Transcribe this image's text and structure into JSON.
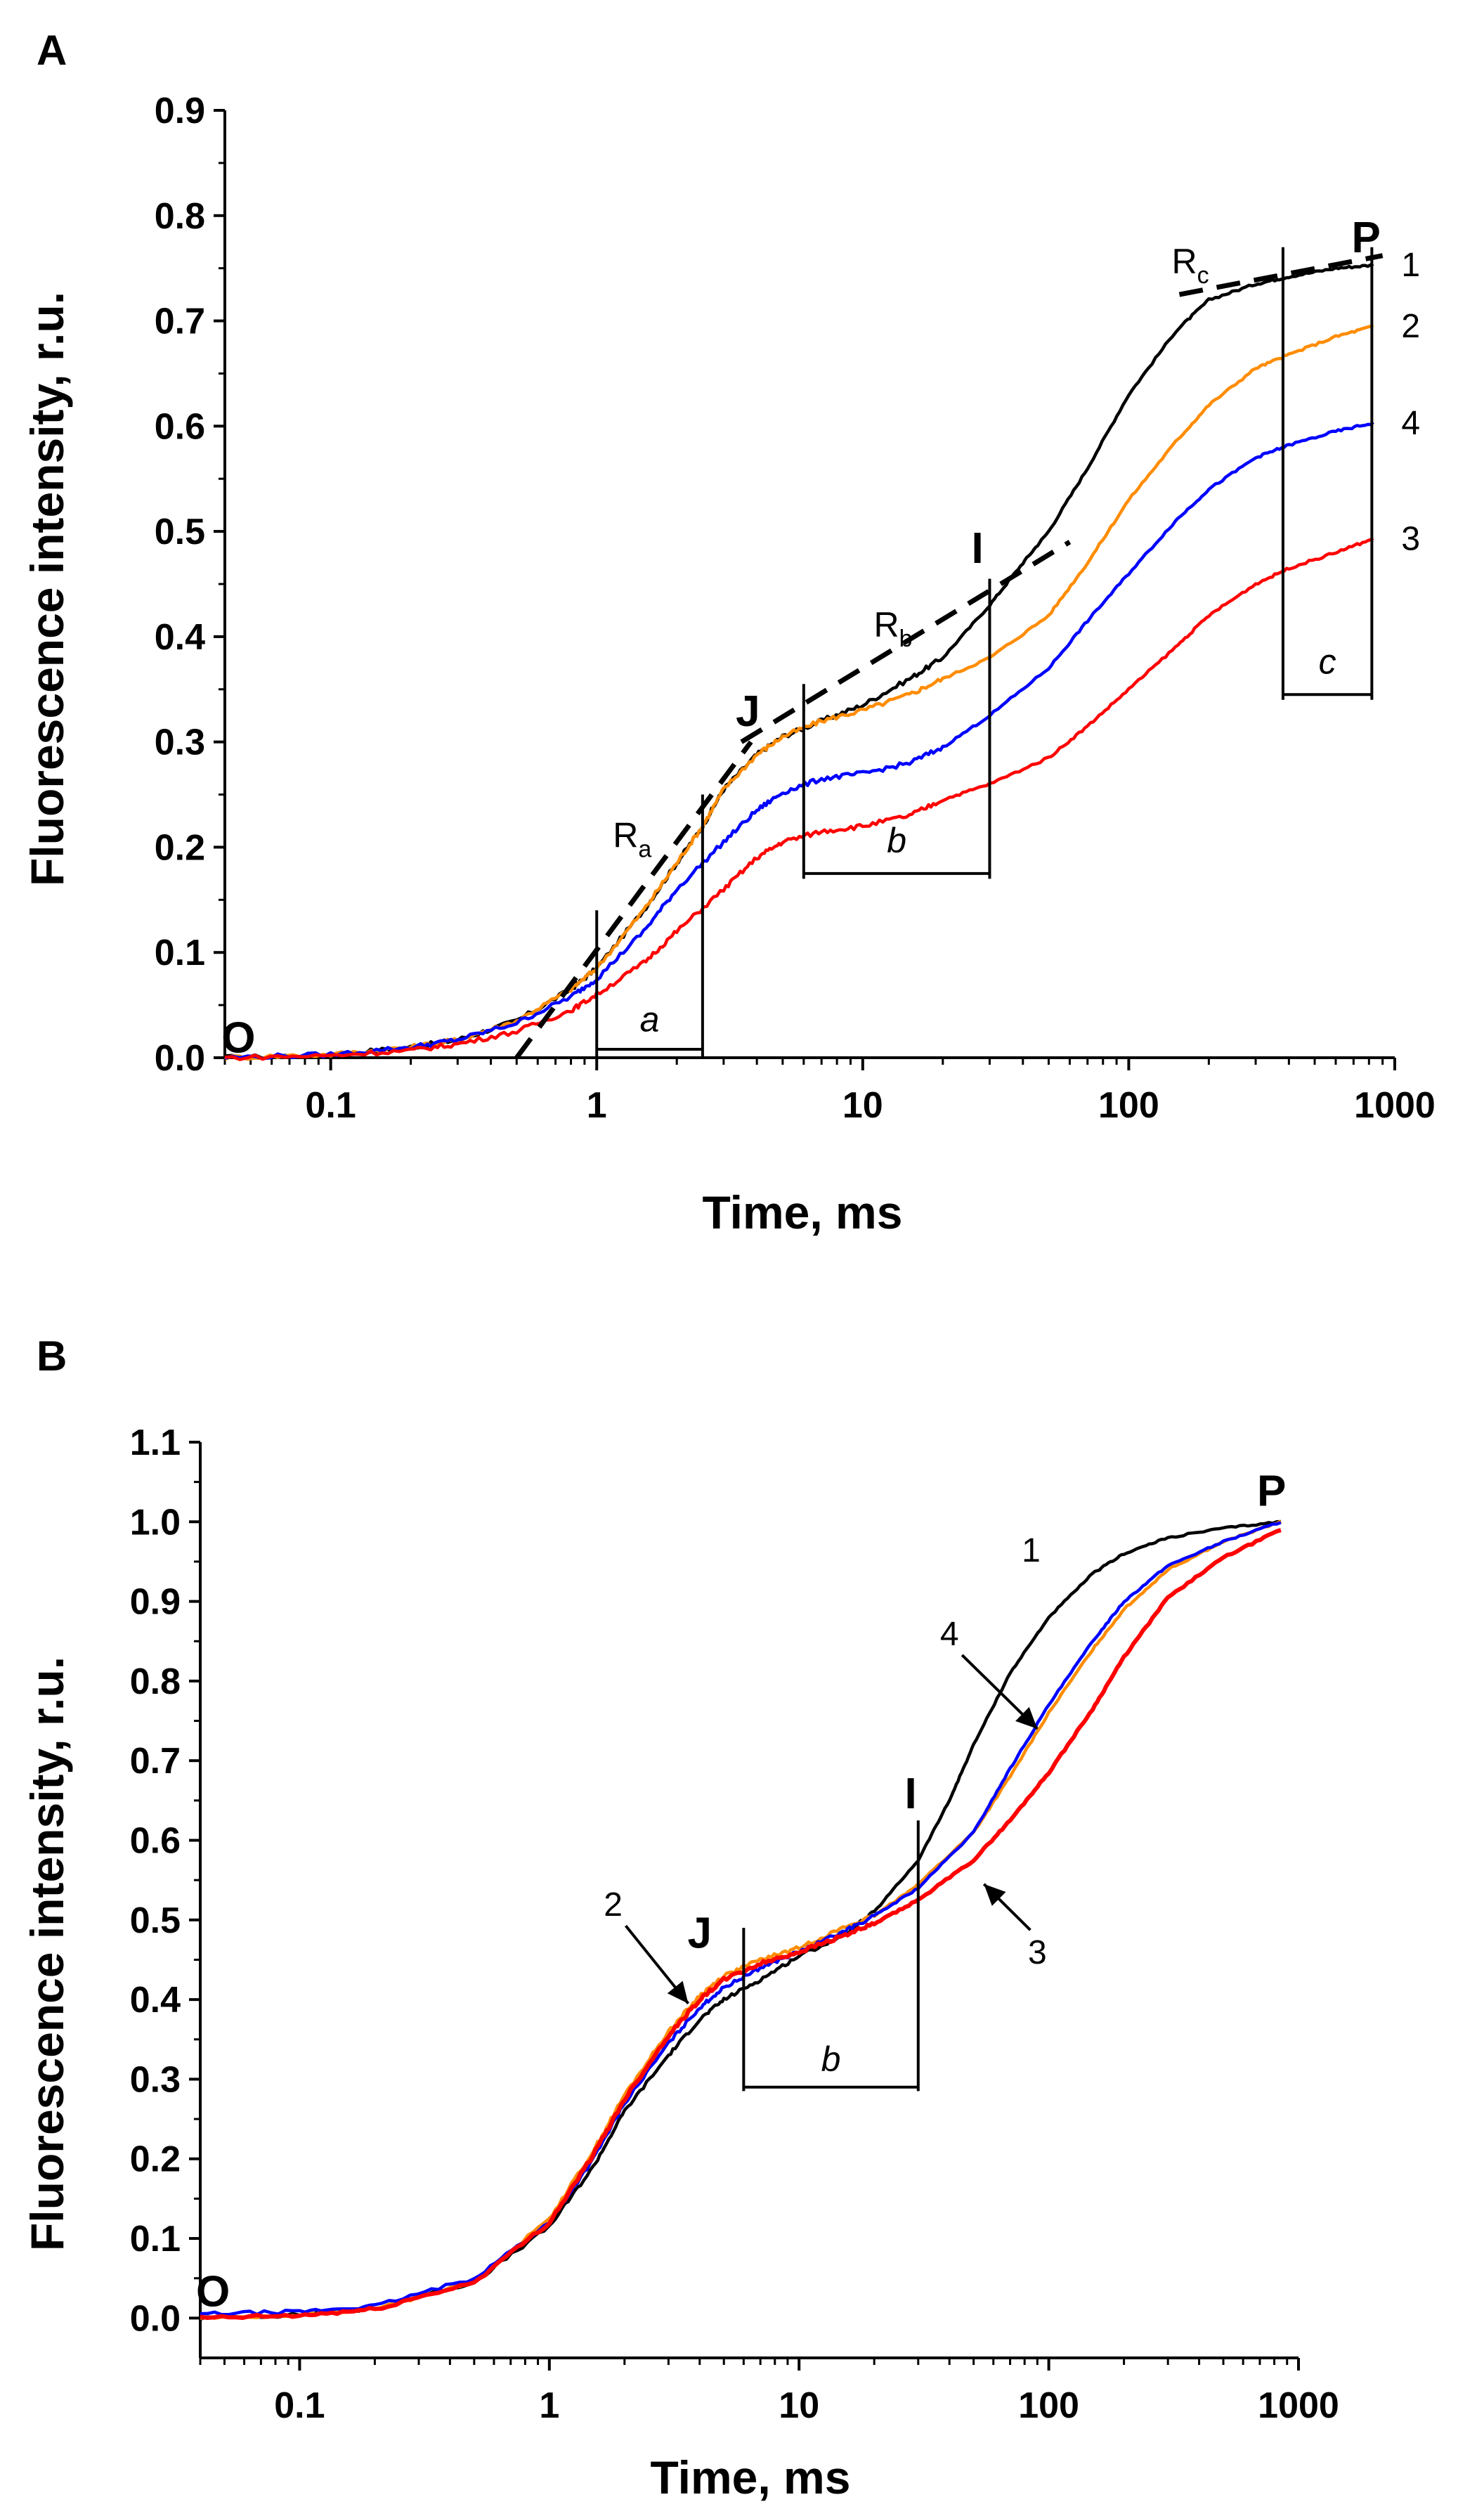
{
  "chart_data": [
    {
      "panel": "A",
      "type": "line",
      "title": "",
      "xlabel": "Time, ms",
      "ylabel": "Fluorescence intensity, r.u.",
      "xscale": "log",
      "xlim": [
        0.04,
        1000
      ],
      "ylim": [
        0.0,
        0.9
      ],
      "xtick_labels": [
        "0.1",
        "1",
        "10",
        "100",
        "1000"
      ],
      "xtick_values": [
        0.1,
        1,
        10,
        100,
        1000
      ],
      "ytick_labels": [
        "0.0",
        "0.1",
        "0.2",
        "0.3",
        "0.4",
        "0.5",
        "0.6",
        "0.7",
        "0.8",
        "0.9"
      ],
      "ytick_values": [
        0.0,
        0.1,
        0.2,
        0.3,
        0.4,
        0.5,
        0.6,
        0.7,
        0.8,
        0.9
      ],
      "grid": false,
      "series": [
        {
          "name": "1",
          "color": "#000000",
          "end_label": "1",
          "points": [
            [
              0.04,
              0.0
            ],
            [
              0.1,
              0.003
            ],
            [
              0.2,
              0.01
            ],
            [
              0.3,
              0.017
            ],
            [
              0.5,
              0.035
            ],
            [
              0.8,
              0.065
            ],
            [
              1,
              0.085
            ],
            [
              1.5,
              0.14
            ],
            [
              2,
              0.185
            ],
            [
              2.5,
              0.22
            ],
            [
              3,
              0.255
            ],
            [
              4,
              0.288
            ],
            [
              5,
              0.305
            ],
            [
              7,
              0.32
            ],
            [
              10,
              0.335
            ],
            [
              15,
              0.36
            ],
            [
              20,
              0.38
            ],
            [
              30,
              0.43
            ],
            [
              40,
              0.47
            ],
            [
              50,
              0.5
            ],
            [
              70,
              0.56
            ],
            [
              100,
              0.63
            ],
            [
              150,
              0.69
            ],
            [
              200,
              0.72
            ],
            [
              300,
              0.735
            ],
            [
              400,
              0.742
            ],
            [
              600,
              0.75
            ],
            [
              830,
              0.753
            ]
          ]
        },
        {
          "name": "2",
          "color": "#ff8c00",
          "end_label": "2",
          "points": [
            [
              0.04,
              0.0
            ],
            [
              0.1,
              0.003
            ],
            [
              0.2,
              0.01
            ],
            [
              0.3,
              0.017
            ],
            [
              0.5,
              0.035
            ],
            [
              0.8,
              0.065
            ],
            [
              1,
              0.085
            ],
            [
              1.5,
              0.14
            ],
            [
              2,
              0.185
            ],
            [
              2.5,
              0.22
            ],
            [
              3,
              0.255
            ],
            [
              4,
              0.288
            ],
            [
              5,
              0.305
            ],
            [
              7,
              0.32
            ],
            [
              10,
              0.33
            ],
            [
              15,
              0.345
            ],
            [
              20,
              0.36
            ],
            [
              30,
              0.38
            ],
            [
              50,
              0.42
            ],
            [
              70,
              0.47
            ],
            [
              100,
              0.53
            ],
            [
              150,
              0.585
            ],
            [
              200,
              0.62
            ],
            [
              300,
              0.655
            ],
            [
              400,
              0.668
            ],
            [
              600,
              0.685
            ],
            [
              830,
              0.695
            ]
          ]
        },
        {
          "name": "4",
          "color": "#0000ff",
          "end_label": "4",
          "points": [
            [
              0.04,
              0.0
            ],
            [
              0.1,
              0.003
            ],
            [
              0.2,
              0.01
            ],
            [
              0.3,
              0.017
            ],
            [
              0.5,
              0.033
            ],
            [
              0.8,
              0.058
            ],
            [
              1,
              0.075
            ],
            [
              1.5,
              0.12
            ],
            [
              2,
              0.16
            ],
            [
              3,
              0.205
            ],
            [
              4,
              0.235
            ],
            [
              5,
              0.252
            ],
            [
              7,
              0.265
            ],
            [
              10,
              0.27
            ],
            [
              15,
              0.28
            ],
            [
              20,
              0.295
            ],
            [
              30,
              0.325
            ],
            [
              50,
              0.37
            ],
            [
              70,
              0.415
            ],
            [
              100,
              0.46
            ],
            [
              150,
              0.51
            ],
            [
              200,
              0.54
            ],
            [
              300,
              0.57
            ],
            [
              400,
              0.582
            ],
            [
              600,
              0.595
            ],
            [
              830,
              0.603
            ]
          ]
        },
        {
          "name": "3",
          "color": "#ff0000",
          "end_label": "3",
          "points": [
            [
              0.04,
              0.0
            ],
            [
              0.1,
              0.002
            ],
            [
              0.2,
              0.007
            ],
            [
              0.3,
              0.013
            ],
            [
              0.5,
              0.025
            ],
            [
              0.8,
              0.045
            ],
            [
              1,
              0.06
            ],
            [
              1.5,
              0.09
            ],
            [
              2,
              0.12
            ],
            [
              3,
              0.16
            ],
            [
              4,
              0.19
            ],
            [
              5,
              0.205
            ],
            [
              7,
              0.215
            ],
            [
              10,
              0.22
            ],
            [
              15,
              0.23
            ],
            [
              20,
              0.245
            ],
            [
              30,
              0.26
            ],
            [
              50,
              0.285
            ],
            [
              70,
              0.315
            ],
            [
              100,
              0.35
            ],
            [
              150,
              0.39
            ],
            [
              200,
              0.42
            ],
            [
              300,
              0.45
            ],
            [
              400,
              0.465
            ],
            [
              600,
              0.48
            ],
            [
              830,
              0.493
            ]
          ]
        }
      ],
      "phase_labels": [
        {
          "text": "O",
          "x": 0.045,
          "y": 0.005
        },
        {
          "text": "J",
          "x": 3.7,
          "y": 0.315
        },
        {
          "text": "I",
          "x": 27,
          "y": 0.47
        },
        {
          "text": "P",
          "x": 780,
          "y": 0.765
        }
      ],
      "tangents": [
        {
          "label": "R",
          "sub": "a",
          "x1": 0.5,
          "y1": 0.0,
          "x2": 3.8,
          "y2": 0.3,
          "label_x": 1.15,
          "label_y": 0.2
        },
        {
          "label": "R",
          "sub": "b",
          "x1": 3.5,
          "y1": 0.3,
          "x2": 60,
          "y2": 0.49,
          "label_x": 11,
          "label_y": 0.4
        },
        {
          "label": "R",
          "sub": "c",
          "x1": 155,
          "y1": 0.725,
          "x2": 900,
          "y2": 0.762,
          "label_x": 145,
          "label_y": 0.745
        }
      ],
      "vertical_lines": [
        {
          "x": 1.0,
          "ymin": 0.0,
          "ymax": 0.14
        },
        {
          "x": 2.5,
          "ymin": 0.0,
          "ymax": 0.25
        },
        {
          "x": 6.0,
          "ymin": 0.17,
          "ymax": 0.355
        },
        {
          "x": 30.0,
          "ymin": 0.17,
          "ymax": 0.455
        },
        {
          "x": 380,
          "ymin": 0.34,
          "ymax": 0.77
        },
        {
          "x": 820,
          "ymin": 0.34,
          "ymax": 0.77
        }
      ],
      "intervals": [
        {
          "label": "a",
          "x1": 1.0,
          "x2": 2.5,
          "y": 0.008,
          "label_y": 0.025
        },
        {
          "label": "b",
          "x1": 6.0,
          "x2": 30.0,
          "y": 0.175,
          "label_y": 0.195
        },
        {
          "label": "c",
          "x1": 380,
          "x2": 820,
          "y": 0.345,
          "label_y": 0.365
        }
      ]
    },
    {
      "panel": "B",
      "type": "line",
      "title": "",
      "xlabel": "Time, ms",
      "ylabel": "Fluorescence intensity, r.u.",
      "xscale": "log",
      "xlim": [
        0.04,
        1000
      ],
      "ylim": [
        -0.05,
        1.1
      ],
      "xtick_labels": [
        "0.1",
        "1",
        "10",
        "100",
        "1000"
      ],
      "xtick_values": [
        0.1,
        1,
        10,
        100,
        1000
      ],
      "ytick_labels": [
        "0.0",
        "0.1",
        "0.2",
        "0.3",
        "0.4",
        "0.5",
        "0.6",
        "0.7",
        "0.8",
        "0.9",
        "1.0",
        "1.1"
      ],
      "ytick_values": [
        0.0,
        0.1,
        0.2,
        0.3,
        0.4,
        0.5,
        0.6,
        0.7,
        0.8,
        0.9,
        1.0,
        1.1
      ],
      "grid": false,
      "series": [
        {
          "name": "1",
          "color": "#000000",
          "points": [
            [
              0.04,
              0.0
            ],
            [
              0.1,
              0.004
            ],
            [
              0.2,
              0.012
            ],
            [
              0.5,
              0.045
            ],
            [
              1,
              0.115
            ],
            [
              1.5,
              0.19
            ],
            [
              2,
              0.26
            ],
            [
              3,
              0.33
            ],
            [
              4,
              0.375
            ],
            [
              5,
              0.4
            ],
            [
              7,
              0.425
            ],
            [
              10,
              0.455
            ],
            [
              15,
              0.48
            ],
            [
              20,
              0.51
            ],
            [
              30,
              0.575
            ],
            [
              40,
              0.65
            ],
            [
              50,
              0.72
            ],
            [
              70,
              0.81
            ],
            [
              100,
              0.88
            ],
            [
              150,
              0.935
            ],
            [
              200,
              0.96
            ],
            [
              300,
              0.98
            ],
            [
              500,
              0.992
            ],
            [
              850,
              1.0
            ]
          ]
        },
        {
          "name": "2",
          "color": "#ff8c00",
          "points": [
            [
              0.04,
              0.0
            ],
            [
              0.1,
              0.004
            ],
            [
              0.2,
              0.012
            ],
            [
              0.5,
              0.045
            ],
            [
              1,
              0.125
            ],
            [
              1.5,
              0.21
            ],
            [
              2,
              0.28
            ],
            [
              3,
              0.36
            ],
            [
              4,
              0.405
            ],
            [
              5,
              0.43
            ],
            [
              7,
              0.45
            ],
            [
              10,
              0.465
            ],
            [
              15,
              0.49
            ],
            [
              20,
              0.505
            ],
            [
              30,
              0.545
            ],
            [
              50,
              0.61
            ],
            [
              70,
              0.68
            ],
            [
              100,
              0.76
            ],
            [
              150,
              0.84
            ],
            [
              200,
              0.89
            ],
            [
              300,
              0.94
            ],
            [
              500,
              0.975
            ],
            [
              850,
              1.0
            ]
          ]
        },
        {
          "name": "4",
          "color": "#0000ff",
          "points": [
            [
              0.04,
              0.005
            ],
            [
              0.1,
              0.008
            ],
            [
              0.2,
              0.015
            ],
            [
              0.5,
              0.05
            ],
            [
              1,
              0.12
            ],
            [
              1.5,
              0.2
            ],
            [
              2,
              0.27
            ],
            [
              3,
              0.345
            ],
            [
              4,
              0.39
            ],
            [
              5,
              0.415
            ],
            [
              7,
              0.44
            ],
            [
              10,
              0.46
            ],
            [
              15,
              0.485
            ],
            [
              20,
              0.505
            ],
            [
              30,
              0.54
            ],
            [
              50,
              0.61
            ],
            [
              70,
              0.69
            ],
            [
              100,
              0.77
            ],
            [
              150,
              0.85
            ],
            [
              200,
              0.9
            ],
            [
              300,
              0.945
            ],
            [
              500,
              0.975
            ],
            [
              850,
              1.0
            ]
          ]
        },
        {
          "name": "3",
          "color": "#ff0000",
          "points": [
            [
              0.04,
              0.0
            ],
            [
              0.1,
              0.003
            ],
            [
              0.2,
              0.011
            ],
            [
              0.5,
              0.045
            ],
            [
              1,
              0.12
            ],
            [
              1.5,
              0.205
            ],
            [
              2,
              0.275
            ],
            [
              3,
              0.355
            ],
            [
              4,
              0.4
            ],
            [
              5,
              0.425
            ],
            [
              7,
              0.445
            ],
            [
              10,
              0.46
            ],
            [
              15,
              0.48
            ],
            [
              20,
              0.495
            ],
            [
              30,
              0.525
            ],
            [
              50,
              0.575
            ],
            [
              70,
              0.625
            ],
            [
              100,
              0.685
            ],
            [
              150,
              0.765
            ],
            [
              200,
              0.83
            ],
            [
              300,
              0.905
            ],
            [
              500,
              0.955
            ],
            [
              850,
              0.99
            ]
          ]
        }
      ],
      "phase_labels": [
        {
          "text": "O",
          "x": 0.045,
          "y": 0.015
        },
        {
          "text": "J",
          "x": 4.0,
          "y": 0.465
        },
        {
          "text": "I",
          "x": 28,
          "y": 0.64
        },
        {
          "text": "P",
          "x": 780,
          "y": 1.02
        }
      ],
      "annotations": [
        {
          "text": "1",
          "x": 85,
          "y": 0.95,
          "arrow": false
        },
        {
          "text": "2",
          "x": 1.8,
          "y": 0.505,
          "arrow": true,
          "ax": 3.6,
          "ay": 0.395
        },
        {
          "text": "4",
          "x": 40,
          "y": 0.845,
          "arrow": true,
          "ax": 90,
          "ay": 0.74
        },
        {
          "text": "3",
          "x": 90,
          "y": 0.445,
          "arrow": true,
          "ax": 55,
          "ay": 0.545
        }
      ],
      "vertical_lines": [
        {
          "x": 6.0,
          "ymin": 0.285,
          "ymax": 0.49
        },
        {
          "x": 30.0,
          "ymin": 0.285,
          "ymax": 0.625
        }
      ],
      "intervals": [
        {
          "label": "b",
          "x1": 6.0,
          "x2": 30.0,
          "y": 0.29,
          "label_y": 0.31
        }
      ]
    }
  ]
}
